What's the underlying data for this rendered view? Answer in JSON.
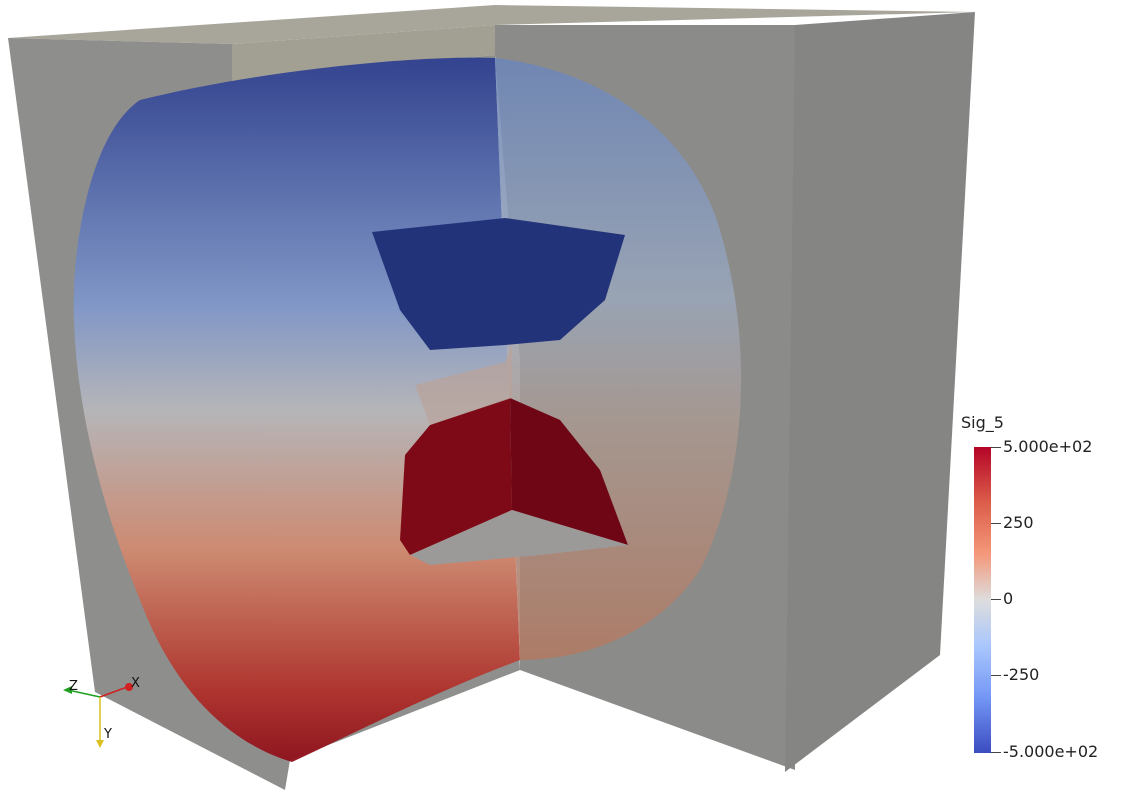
{
  "legend": {
    "title": "Sig_5",
    "ticks": [
      {
        "value": 500,
        "label": "5.000e+02"
      },
      {
        "value": 250,
        "label": "250"
      },
      {
        "value": 0,
        "label": "0"
      },
      {
        "value": -250,
        "label": "-250"
      },
      {
        "value": -500,
        "label": "-5.000e+02"
      }
    ],
    "range": [
      -500,
      500
    ],
    "colors": {
      "max": "#b40426",
      "mid": "#dddddd",
      "min": "#3b4cc0"
    }
  },
  "orientation_axes": {
    "x": "X",
    "y": "Y",
    "z": "Z"
  },
  "scene": {
    "surface_color": "#8c8c8a",
    "top_color": "#a8a59a"
  }
}
